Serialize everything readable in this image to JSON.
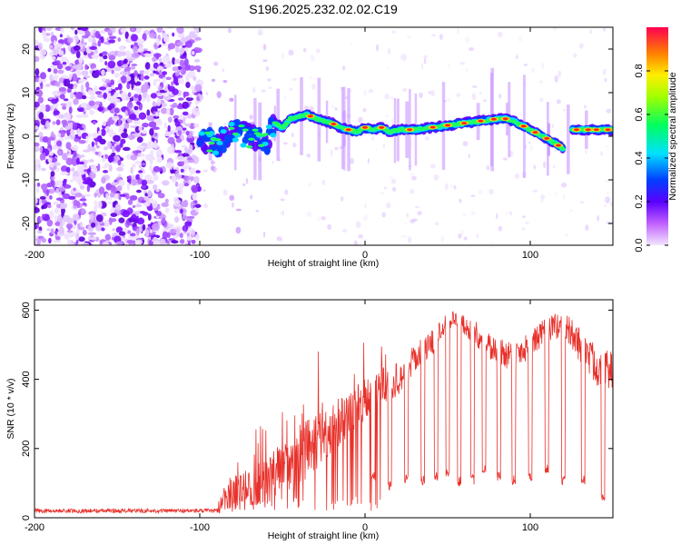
{
  "title": "S196.2025.232.02.02.C19",
  "chart_data": [
    {
      "type": "heatmap",
      "name": "spectrogram",
      "xlabel": "Height of straight line (km)",
      "ylabel": "Frequency (Hz)",
      "xlim": [
        -200,
        150
      ],
      "ylim": [
        -25,
        25
      ],
      "xticks": [
        -200,
        -100,
        0,
        100
      ],
      "yticks": [
        -20,
        -10,
        0,
        10,
        20
      ],
      "noise_region_x": [
        -200,
        -100
      ],
      "ridge": {
        "x": [
          -100,
          -90,
          -80,
          -70,
          -60,
          -55,
          -50,
          -45,
          -40,
          -35,
          -30,
          -25,
          -20,
          -15,
          -10,
          -5,
          0,
          5,
          10,
          15,
          20,
          30,
          40,
          50,
          60,
          70,
          80,
          85,
          90,
          95,
          100,
          105,
          110,
          115,
          120,
          125,
          130,
          140,
          150
        ],
        "freq": [
          0,
          -2,
          1,
          0,
          -2,
          3,
          2,
          4,
          4.5,
          5,
          4,
          3.5,
          3,
          2,
          1.5,
          1,
          2,
          1.5,
          2,
          1,
          1.5,
          1.5,
          2,
          2.5,
          3,
          3.5,
          4,
          4,
          3.5,
          2.5,
          1.5,
          0.5,
          -0.5,
          -1.5,
          -3,
          1.5,
          1.5,
          1.5,
          1.5
        ]
      },
      "colorbar": {
        "label": "Normalized spectral amplitude",
        "range": [
          0,
          1
        ],
        "ticks": [
          0.0,
          0.2,
          0.4,
          0.6,
          0.8
        ],
        "tick_labels": [
          "0.0",
          "0.2",
          "0.4",
          "0.6",
          "0.8"
        ]
      }
    },
    {
      "type": "line",
      "name": "snr",
      "xlabel": "Height of straight line (km)",
      "ylabel": "SNR (10 * v/v)",
      "xlim": [
        -200,
        150
      ],
      "ylim": [
        0,
        630
      ],
      "xticks": [
        -200,
        -100,
        0,
        100
      ],
      "yticks": [
        0,
        200,
        400,
        600
      ],
      "color": "#e8302a",
      "envelope": {
        "x": [
          -200,
          -90,
          -85,
          -70,
          -60,
          -50,
          -40,
          -30,
          -20,
          -10,
          0,
          10,
          20,
          30,
          40,
          50,
          60,
          70,
          80,
          90,
          100,
          110,
          120,
          130,
          140,
          150
        ],
        "base": [
          20,
          20,
          60,
          80,
          100,
          140,
          180,
          220,
          260,
          300,
          340,
          380,
          400,
          460,
          500,
          580,
          560,
          520,
          480,
          470,
          500,
          540,
          560,
          500,
          440,
          420
        ],
        "noise": [
          6,
          6,
          50,
          60,
          70,
          80,
          90,
          90,
          80,
          60,
          60,
          50,
          50,
          40,
          40,
          30,
          30,
          40,
          40,
          50,
          40,
          40,
          40,
          50,
          60,
          60
        ]
      },
      "dropouts": [
        {
          "x": 5,
          "level": 120
        },
        {
          "x": 15,
          "level": 90
        },
        {
          "x": 25,
          "level": 110
        },
        {
          "x": 35,
          "level": 110
        },
        {
          "x": 43,
          "level": 120
        },
        {
          "x": 50,
          "level": 130
        },
        {
          "x": 57,
          "level": 105
        },
        {
          "x": 65,
          "level": 110
        },
        {
          "x": 72,
          "level": 140
        },
        {
          "x": 81,
          "level": 120
        },
        {
          "x": 90,
          "level": 110
        },
        {
          "x": 100,
          "level": 120
        },
        {
          "x": 110,
          "level": 140
        },
        {
          "x": 120,
          "level": 110
        },
        {
          "x": 132,
          "level": 110
        },
        {
          "x": 144,
          "level": 65
        }
      ]
    }
  ]
}
